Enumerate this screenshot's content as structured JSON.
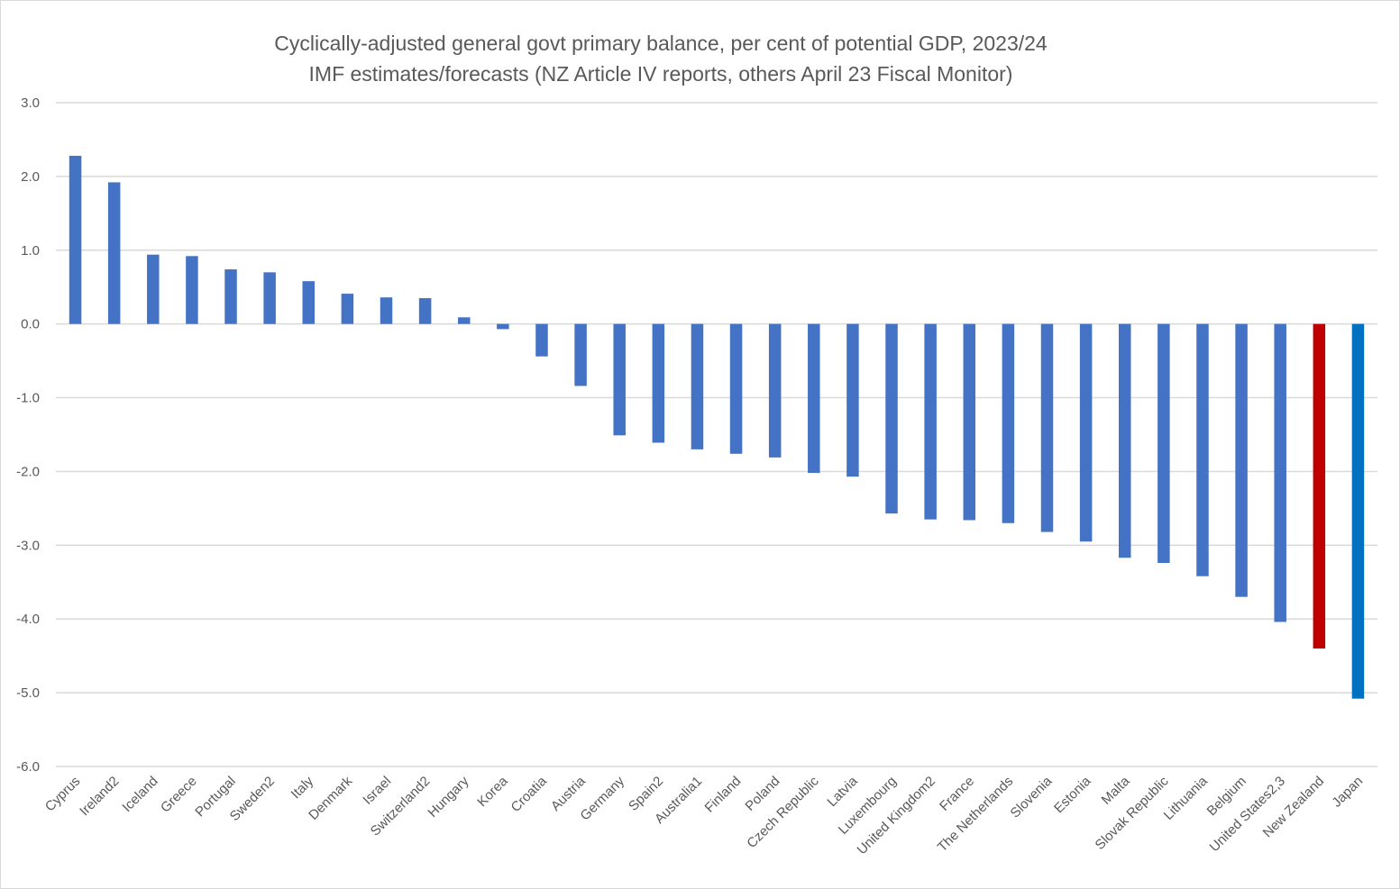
{
  "chart_data": {
    "type": "bar",
    "title": "Cyclically-adjusted general govt primary balance, per cent of potential GDP, 2023/24",
    "subtitle": "IMF estimates/forecasts (NZ Article IV reports, others April 23 Fiscal Monitor)",
    "xlabel": "",
    "ylabel": "",
    "ylim": [
      -6.0,
      3.0
    ],
    "yticks": [
      3.0,
      2.0,
      1.0,
      0.0,
      -1.0,
      -2.0,
      -3.0,
      -4.0,
      -5.0,
      -6.0
    ],
    "ytick_labels": [
      "3.0",
      "2.0",
      "1.0",
      "0.0",
      "-1.0",
      "-2.0",
      "-3.0",
      "-4.0",
      "-5.0",
      "-6.0"
    ],
    "grid": true,
    "legend": "none",
    "categories": [
      "Cyprus",
      "Ireland2",
      "Iceland",
      "Greece",
      "Portugal",
      "Sweden2",
      "Italy",
      "Denmark",
      "Israel",
      "Switzerland2",
      "Hungary",
      "Korea",
      "Croatia",
      "Austria",
      "Germany",
      "Spain2",
      "Australia1",
      "Finland",
      "Poland",
      "Czech Republic",
      "Latvia",
      "Luxembourg",
      "United Kingdom2",
      "France",
      "The Netherlands",
      "Slovenia",
      "Estonia",
      "Malta",
      "Slovak Republic",
      "Lithuania",
      "Belgium",
      "United States2,3",
      "New Zealand",
      "Japan"
    ],
    "values": [
      2.28,
      1.92,
      0.94,
      0.92,
      0.74,
      0.7,
      0.58,
      0.41,
      0.36,
      0.35,
      0.09,
      -0.07,
      -0.44,
      -0.84,
      -1.51,
      -1.61,
      -1.7,
      -1.76,
      -1.81,
      -2.02,
      -2.07,
      -2.57,
      -2.65,
      -2.66,
      -2.7,
      -2.82,
      -2.95,
      -3.17,
      -3.24,
      -3.42,
      -3.7,
      -4.04,
      -4.4,
      -5.08
    ],
    "colors": {
      "default": "#4472c4",
      "highlight": {
        "New Zealand": "#c00000",
        "Japan": "#0070c0"
      },
      "grid": "#d9d9d9",
      "text": "#595959"
    }
  }
}
